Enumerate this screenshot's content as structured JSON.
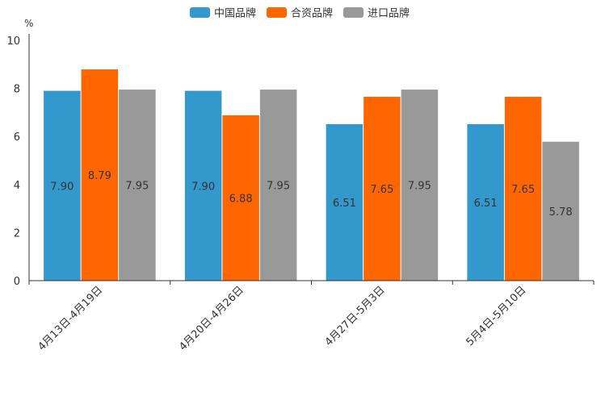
{
  "chart_data": {
    "type": "bar",
    "title": "",
    "ylabel": "%",
    "xlabel": "",
    "ylim": [
      0,
      10
    ],
    "yticks": [
      0,
      2,
      4,
      6,
      8,
      10
    ],
    "categories": [
      "4月13日-4月19日",
      "4月20日-4月26日",
      "4月27日-5月3日",
      "5月4日-5月10日"
    ],
    "series": [
      {
        "name": "中国品牌",
        "color": "#3398cc",
        "values": [
          7.9,
          7.9,
          6.51,
          6.51
        ],
        "labels": [
          "7.90",
          "7.90",
          "6.51",
          "6.51"
        ]
      },
      {
        "name": "合资品牌",
        "color": "#ff6600",
        "values": [
          8.79,
          6.88,
          7.65,
          7.65
        ],
        "labels": [
          "8.79",
          "6.88",
          "7.65",
          "7.65"
        ]
      },
      {
        "name": "进口品牌",
        "color": "#999999",
        "values": [
          7.95,
          7.95,
          7.95,
          5.78
        ],
        "labels": [
          "7.95",
          "7.95",
          "7.95",
          "5.78"
        ]
      }
    ],
    "legend": "top-center",
    "grid": false
  }
}
